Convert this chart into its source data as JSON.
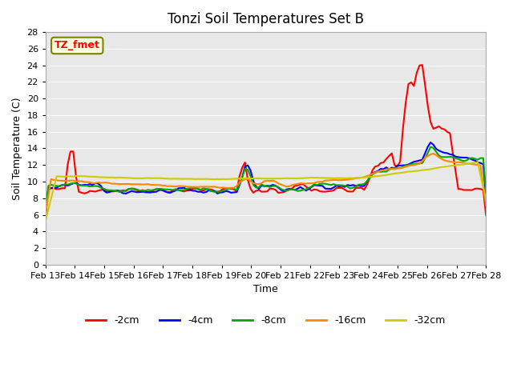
{
  "title": "Tonzi Soil Temperatures Set B",
  "xlabel": "Time",
  "ylabel": "Soil Temperature (C)",
  "annotation": "TZ_fmet",
  "ylim": [
    0,
    28
  ],
  "yticks": [
    0,
    2,
    4,
    6,
    8,
    10,
    12,
    14,
    16,
    18,
    20,
    22,
    24,
    26,
    28
  ],
  "bg_color": "#e8e8e8",
  "series": {
    "-2cm": {
      "color": "#ff0000",
      "lw": 1.5
    },
    "-4cm": {
      "color": "#0000ff",
      "lw": 1.5
    },
    "-8cm": {
      "color": "#00aa00",
      "lw": 1.5
    },
    "-16cm": {
      "color": "#ff8800",
      "lw": 1.5
    },
    "-32cm": {
      "color": "#cccc00",
      "lw": 1.5
    }
  },
  "x_labels": [
    "Feb 13",
    "Feb 14",
    "Feb 15",
    "Feb 16",
    "Feb 17",
    "Feb 18",
    "Feb 19",
    "Feb 20",
    "Feb 21",
    "Feb 22",
    "Feb 23",
    "Feb 24",
    "Feb 25",
    "Feb 26",
    "Feb 27",
    "Feb 28"
  ],
  "n_points": 160,
  "days": 15
}
